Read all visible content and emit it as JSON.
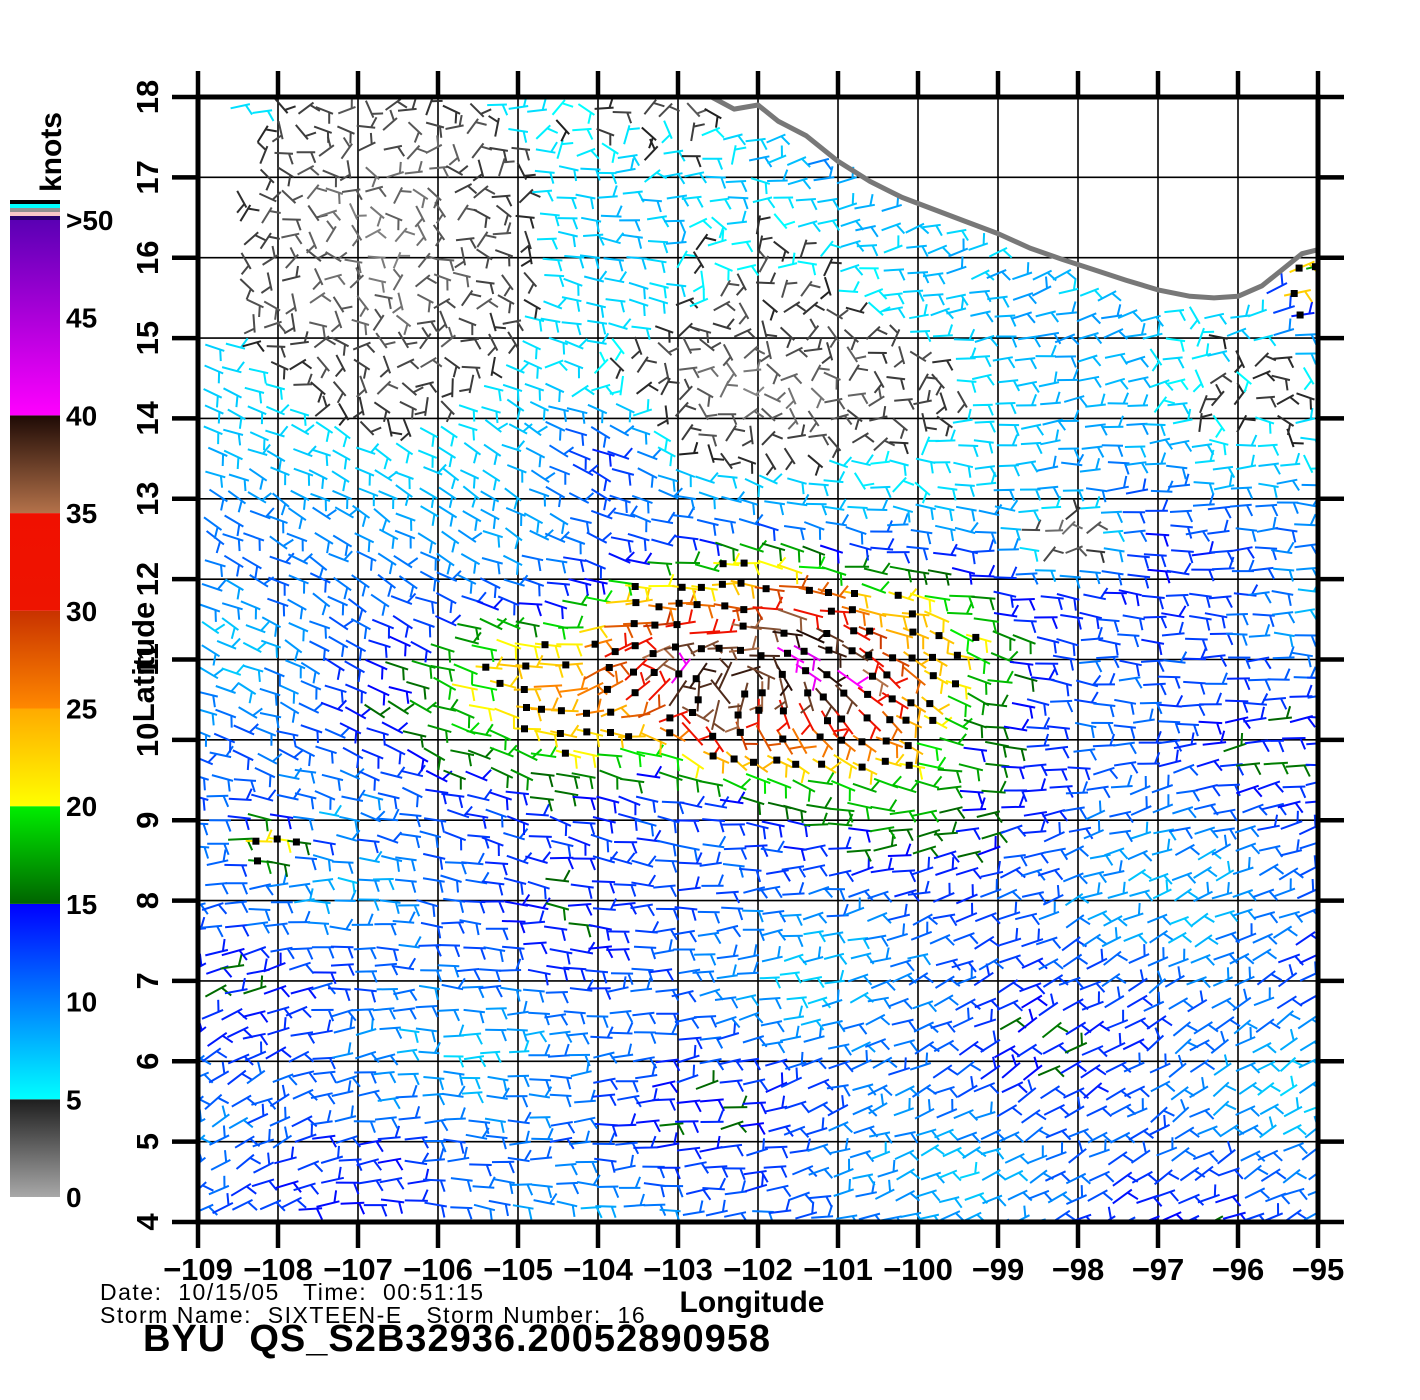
{
  "footer": {
    "line1": "Date:  10/15/05   Time:  00:51:15",
    "line2": "Storm Name:  SIXTEEN-E   Storm Number:  16",
    "title": "BYU  QS_S2B32936.20052890958"
  },
  "axes": {
    "x_label": "Longitude",
    "y_label": "Latitude",
    "x_ticks": [
      -109,
      -108,
      -107,
      -106,
      -105,
      -104,
      -103,
      -102,
      -101,
      -100,
      -99,
      -98,
      -97,
      -96,
      -95
    ],
    "y_ticks": [
      4,
      5,
      6,
      7,
      8,
      9,
      10,
      11,
      12,
      13,
      14,
      15,
      16,
      17,
      18
    ]
  },
  "colorbar": {
    "label": "knots",
    "tick_labels": [
      ">50",
      "45",
      "40",
      "35",
      "30",
      "25",
      "20",
      "15",
      "10",
      "5",
      "0"
    ],
    "tick_values": [
      50,
      45,
      40,
      35,
      30,
      25,
      20,
      15,
      10,
      5,
      0
    ],
    "segments_bottom_to_top": [
      {
        "from": 0,
        "to": 5,
        "color_bottom": "#a8a8a8",
        "color_top": "#1e1e1e"
      },
      {
        "from": 5,
        "to": 15,
        "color_bottom": "#00ffff",
        "color_top": "#0000ff"
      },
      {
        "from": 15,
        "to": 20,
        "color_bottom": "#006400",
        "color_top": "#00ee00"
      },
      {
        "from": 20,
        "to": 25,
        "color_bottom": "#ffff00",
        "color_top": "#ffaa00"
      },
      {
        "from": 25,
        "to": 30,
        "color_bottom": "#ff8800",
        "color_top": "#c83200"
      },
      {
        "from": 30,
        "to": 35,
        "color_bottom": "#ee1400",
        "color_top": "#f01000"
      },
      {
        "from": 35,
        "to": 40,
        "color_bottom": "#b4724a",
        "color_top": "#1e0a05"
      },
      {
        "from": 40,
        "to": 50,
        "color_bottom": "#ff00ff",
        "color_top": "#5a00b4"
      }
    ],
    "overflow_stripes_bottom_to_top": [
      "#28006e",
      "#f8c8c8",
      "#909090",
      "#00ffff",
      "#000000"
    ]
  },
  "chart_data": {
    "type": "scatter",
    "subtype": "satellite-scatterometer-wind-vector-map",
    "title": "BYU  QS_S2B32936.20052890958",
    "date": "10/15/05",
    "time": "00:51:15",
    "storm_name": "SIXTEEN-E",
    "storm_number": "16",
    "xlabel": "Longitude",
    "ylabel": "Latitude",
    "xlim": [
      -109,
      -95
    ],
    "ylim": [
      4,
      18
    ],
    "grid": true,
    "colorbar_units": "knots",
    "colorbar_range": [
      0,
      50
    ],
    "legend_position": "left",
    "vector_grid_spacing_deg": 0.268,
    "land_color": "#ffffff",
    "coastline_color": "#787878",
    "rain_flag_color": "#000000",
    "coastline_lon_lat": [
      [
        -102.58,
        18.0
      ],
      [
        -102.3,
        17.85
      ],
      [
        -102.0,
        17.9
      ],
      [
        -101.75,
        17.7
      ],
      [
        -101.4,
        17.52
      ],
      [
        -101.0,
        17.2
      ],
      [
        -100.6,
        16.95
      ],
      [
        -100.2,
        16.75
      ],
      [
        -99.8,
        16.6
      ],
      [
        -99.4,
        16.45
      ],
      [
        -99.0,
        16.3
      ],
      [
        -98.6,
        16.12
      ],
      [
        -98.2,
        15.98
      ],
      [
        -97.8,
        15.85
      ],
      [
        -97.4,
        15.72
      ],
      [
        -97.0,
        15.6
      ],
      [
        -96.6,
        15.52
      ],
      [
        -96.3,
        15.5
      ],
      [
        -96.0,
        15.52
      ],
      [
        -95.7,
        15.65
      ],
      [
        -95.45,
        15.85
      ],
      [
        -95.2,
        16.05
      ],
      [
        -95.0,
        16.1
      ]
    ],
    "wind_field": {
      "background_knots": 11,
      "storm_center_lon_lat": [
        -102.1,
        10.8
      ],
      "storm_core_max_knots": 39,
      "storm_core_extent": {
        "lon_range": [
          -105.3,
          -99.0
        ],
        "lat_range": [
          9.4,
          12.1
        ]
      },
      "calm_patches": [
        {
          "center": [
            -106.7,
            16.2
          ],
          "rx_deg": 2.0,
          "ry_deg": 2.4,
          "knots": "0-5"
        },
        {
          "center": [
            -101.9,
            14.35
          ],
          "rx_deg": 2.5,
          "ry_deg": 0.95,
          "knots": "0-5"
        },
        {
          "center": [
            -98.15,
            12.55
          ],
          "rx_deg": 0.5,
          "ry_deg": 0.35,
          "knots": "0-5"
        }
      ],
      "high_wind_clusters": [
        {
          "center": [
            -108.15,
            8.75
          ],
          "rx_deg": 0.4,
          "ry_deg": 0.42,
          "boost_knots": 13,
          "flag_prob": 0.55
        },
        {
          "center": [
            -107.05,
            8.66
          ],
          "rx_deg": 1.05,
          "ry_deg": 0.14,
          "boost_knots": 6,
          "flag_prob": 0.5
        },
        {
          "center": [
            -95.22,
            15.72
          ],
          "rx_deg": 0.3,
          "ry_deg": 0.5,
          "boost_knots": 15,
          "flag_prob": 0.6
        },
        {
          "center": [
            -103.95,
            13.65
          ],
          "rx_deg": 0.75,
          "ry_deg": 0.75,
          "boost_knots": 7,
          "flag_prob": 0.3
        }
      ],
      "swath_left_edge": {
        "lon": -108.5,
        "above_lat": 15.1
      }
    }
  }
}
